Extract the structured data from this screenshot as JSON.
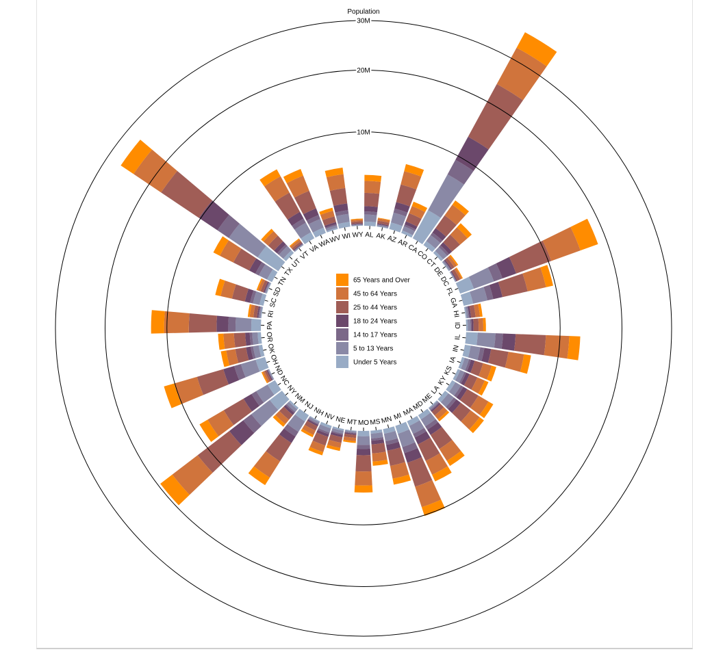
{
  "chart_data": {
    "type": "bar",
    "subtype": "radial-stacked",
    "title": "",
    "ylabel": "Population",
    "ylim": [
      0,
      30000000
    ],
    "y_ticks": [
      {
        "value": 10000000,
        "label": "10M"
      },
      {
        "value": 20000000,
        "label": "20M"
      },
      {
        "value": 30000000,
        "label": "30M"
      }
    ],
    "legend_position": "center",
    "keys": [
      "Under 5 Years",
      "5 to 13 Years",
      "14 to 17 Years",
      "18 to 24 Years",
      "25 to 44 Years",
      "45 to 64 Years",
      "65 Years and Over"
    ],
    "legend_order": [
      "65 Years and Over",
      "45 to 64 Years",
      "25 to 44 Years",
      "18 to 24 Years",
      "14 to 17 Years",
      "5 to 13 Years",
      "Under 5 Years"
    ],
    "colors": {
      "Under 5 Years": "#98abc5",
      "5 to 13 Years": "#8a89a6",
      "14 to 17 Years": "#7b6888",
      "18 to 24 Years": "#6b486b",
      "25 to 44 Years": "#a05d56",
      "45 to 64 Years": "#d0743c",
      "65 Years and Over": "#ff8c00"
    },
    "categories": [
      "AL",
      "AK",
      "AZ",
      "AR",
      "CA",
      "CO",
      "CT",
      "DE",
      "DC",
      "FL",
      "GA",
      "HI",
      "ID",
      "IL",
      "IN",
      "IA",
      "KS",
      "KY",
      "LA",
      "ME",
      "MD",
      "MA",
      "MI",
      "MN",
      "MS",
      "MO",
      "MT",
      "NE",
      "NV",
      "NH",
      "NJ",
      "NM",
      "NY",
      "NC",
      "ND",
      "OH",
      "OK",
      "OR",
      "PA",
      "RI",
      "SC",
      "SD",
      "TN",
      "TX",
      "UT",
      "VT",
      "VA",
      "WA",
      "WV",
      "WI",
      "WY"
    ],
    "series": [
      {
        "name": "Under 5 Years",
        "values": [
          310504,
          52083,
          515910,
          202070,
          2704659,
          358280,
          211637,
          59319,
          36352,
          1140516,
          740521,
          87207,
          121746,
          894368,
          443089,
          201321,
          202329,
          284965,
          310716,
          71459,
          371787,
          383568,
          625526,
          358471,
          220813,
          399450,
          61114,
          132092,
          199175,
          75297,
          557421,
          148323,
          1208495,
          652823,
          41896,
          743750,
          266547,
          243483,
          737462,
          60934,
          303024,
          58566,
          416334,
          2027307,
          268916,
          32635,
          522672,
          433119,
          105435,
          362277,
          38253
        ]
      },
      {
        "name": "5 to 13 Years",
        "values": [
          552339,
          85640,
          828669,
          343207,
          4499890,
          587154,
          403658,
          99496,
          50439,
          1938695,
          1250460,
          134025,
          201192,
          1558919,
          780199,
          345409,
          345120,
          493536,
          542341,
          133656,
          651923,
          701752,
          1179503,
          606802,
          371502,
          690476,
          106088,
          215265,
          325650,
          143026,
          1011656,
          241326,
          2141490,
          1097890,
          67358,
          1311479,
          438926,
          424167,
          1345341,
          111408,
          517803,
          94438,
          725948,
          3587754,
          452140,
          62538,
          887525,
          750274,
          179638,
          640286,
          60890
        ]
      },
      {
        "name": "14 to 17 Years",
        "values": [
          259034,
          42153,
          362642,
          157204,
          2159981,
          261701,
          196918,
          47414,
          25225,
          925060,
          557860,
          64011,
          89702,
          725973,
          361393,
          165883,
          155822,
          229927,
          254916,
          69752,
          328050,
          341713,
          585169,
          305340,
          174405,
          331543,
          53156,
          105301,
          142976,
          73865,
          494730,
          112801,
          1058031,
          492964,
          33794,
          650222,
          200562,
          199925,
          679201,
          56198,
          245400,
          45305,
          336312,
          1649799,
          188478,
          33757,
          413004,
          357782,
          91074,
          311849,
          29314
        ]
      },
      {
        "name": "18 to 24 Years",
        "values": [
          450818,
          74257,
          601943,
          264160,
          3853788,
          466194,
          325110,
          84464,
          75569,
          1607297,
          919876,
          124834,
          147644,
          1311479,
          605863,
          306398,
          293114,
          381002,
          471275,
          112682,
          538932,
          665879,
          974480,
          510930,
          307031,
          560463,
          95232,
          181425,
          220896,
          128282,
          713495,
          203097,
          1998070,
          889404,
          82629,
          1131342,
          385966,
          376826,
          1177479,
          103970,
          446916,
          90210,
          610201,
          2946927,
          341483,
          66164,
          697016,
          638180,
          168012,
          593497,
          59659
        ]
      },
      {
        "name": "25 to 44 Years",
        "values": [
          1215966,
          198447,
          1804762,
          754420,
          10604510,
          1464939,
          916955,
          230183,
          230240,
          4782119,
          2846985,
          356237,
          409287,
          3596014,
          1724528,
          750505,
          722150,
          1162855,
          1139690,
          365813,
          1583066,
          1782813,
          2756234,
          1458603,
          772233,
          1561522,
          231966,
          459252,
          773715,
          379450,
          2245758,
          496213,
          5355235,
          2452315,
          162193,
          3115476,
          957346,
          991389,
          3164752,
          278680,
          1206657,
          225450,
          1734744,
          7194765,
          678108,
          157003,
          2246215,
          1865750,
          474752,
          1480080,
          149213
        ]
      },
      {
        "name": "45 to 64 Years",
        "values": [
          1212361,
          183159,
          1523681,
          703473,
          8819342,
          1364780,
          938474,
          231669,
          160919,
          4752012,
          2389018,
          358400,
          385611,
          3239173,
          1734511,
          823715,
          732111,
          1165956,
          1142670,
          413626,
          1502966,
          1675846,
          2720874,
          1360542,
          757300,
          1500903,
          261241,
          445530,
          627188,
          390470,
          2285666,
          496212,
          5120254,
          2287709,
          155989,
          3122749,
          886542,
          1007310,
          3290564,
          298735,
          1168624,
          212286,
          1654955,
          6129856,
          570934,
          180900,
          2173203,
          1819828,
          489962,
          1476555,
          141496
        ]
      },
      {
        "name": "65 Years and Over",
        "values": [
          641667,
          50277,
          862573,
          434293,
          4114496,
          575373,
          556061,
          121588,
          73813,
          3187797,
          981024,
          212519,
          226101,
          1649708,
          839000,
          458315,
          379128,
          573633,
          562240,
          209153,
          669084,
          869000,
          1262711,
          678434,
          403748,
          808600,
          140998,
          263400,
          313543,
          201680,
          1134200,
          292570,
          2659300,
          1227180,
          97400,
          1542400,
          545700,
          546500,
          1910900,
          152900,
          582600,
          123200,
          849600,
          3122400,
          299000,
          80500,
          1000400,
          841900,
          268300,
          743900,
          65800
        ]
      }
    ]
  }
}
